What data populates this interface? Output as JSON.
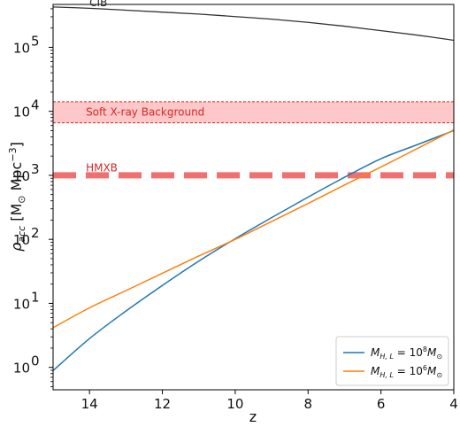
{
  "chart_data": {
    "type": "line",
    "x_scale": "linear",
    "y_scale": "log",
    "xlim": [
      15,
      4
    ],
    "ylim_log10": [
      -0.35,
      5.67
    ],
    "x_ticks": [
      14,
      12,
      10,
      8,
      6,
      4
    ],
    "x_tick_labels": [
      "14",
      "12",
      "10",
      "8",
      "6",
      "4"
    ],
    "y_ticks_log10": [
      0,
      1,
      2,
      3,
      4,
      5
    ],
    "y_tick_labels": [
      {
        "base": "10",
        "exp": "0"
      },
      {
        "base": "10",
        "exp": "1"
      },
      {
        "base": "10",
        "exp": "2"
      },
      {
        "base": "10",
        "exp": "3"
      },
      {
        "base": "10",
        "exp": "4"
      },
      {
        "base": "10",
        "exp": "5"
      }
    ],
    "xlabel": "z",
    "ylabel": {
      "main": "ρ",
      "sub": "acc",
      "units_pre": " [M",
      "units_sub": "⊙",
      "units_mid": " Mpc",
      "units_sup": "−3",
      "units_post": "]"
    },
    "series": [
      {
        "key": "cib",
        "color": "#333333",
        "width": 1.3,
        "x": [
          15,
          14,
          13,
          12,
          11,
          10,
          9,
          8,
          7,
          6,
          5,
          4
        ],
        "y_log10": [
          5.63,
          5.61,
          5.58,
          5.55,
          5.52,
          5.48,
          5.44,
          5.39,
          5.33,
          5.26,
          5.19,
          5.11
        ]
      },
      {
        "key": "mhl_1e8",
        "color": "#1f77b4",
        "width": 1.5,
        "x": [
          15,
          14,
          13,
          12,
          11,
          10,
          9,
          8,
          7,
          6,
          5,
          4
        ],
        "y_log10": [
          -0.05,
          0.45,
          0.88,
          1.28,
          1.66,
          2.01,
          2.34,
          2.66,
          2.97,
          3.26,
          3.48,
          3.7
        ]
      },
      {
        "key": "mhl_1e6",
        "color": "#ff7f0e",
        "width": 1.5,
        "x": [
          15,
          14,
          13,
          12,
          11,
          10,
          9,
          8,
          7,
          6,
          5,
          4
        ],
        "y_log10": [
          0.62,
          0.93,
          1.2,
          1.47,
          1.74,
          2.0,
          2.28,
          2.56,
          2.85,
          3.13,
          3.42,
          3.71
        ]
      }
    ],
    "bands": [
      {
        "key": "soft_xray",
        "lo_log10": 3.82,
        "hi_log10": 4.15,
        "fill": "#ffc8c8",
        "edge": "#d62728",
        "label": "Soft X-ray Background"
      }
    ],
    "hlines": [
      {
        "key": "hmxb",
        "y_log10": 3.0,
        "color": "#f07070",
        "width": 7,
        "label": "HMXB"
      }
    ],
    "annotations": [
      {
        "key": "cib",
        "text": "CIB",
        "x": 14.0,
        "y_log10": 5.7,
        "color": "#222222"
      },
      {
        "key": "soft_xray",
        "text": "Soft X-ray Background",
        "x": 14.1,
        "y_log10": 3.99,
        "color": "#d62728"
      },
      {
        "key": "hmxb",
        "text": "HMXB",
        "x": 14.1,
        "y_log10": 3.12,
        "color": "#d62728"
      }
    ],
    "legend": {
      "position": "lower-right",
      "entries": [
        {
          "series": "mhl_1e8",
          "prefix": "M",
          "sub": "H, L",
          "mid": " = 10",
          "sup": "8",
          "unit": "M",
          "unit_sub": "⊙"
        },
        {
          "series": "mhl_1e6",
          "prefix": "M",
          "sub": "H, L",
          "mid": " = 10",
          "sup": "6",
          "unit": "M",
          "unit_sub": "⊙"
        }
      ]
    }
  }
}
